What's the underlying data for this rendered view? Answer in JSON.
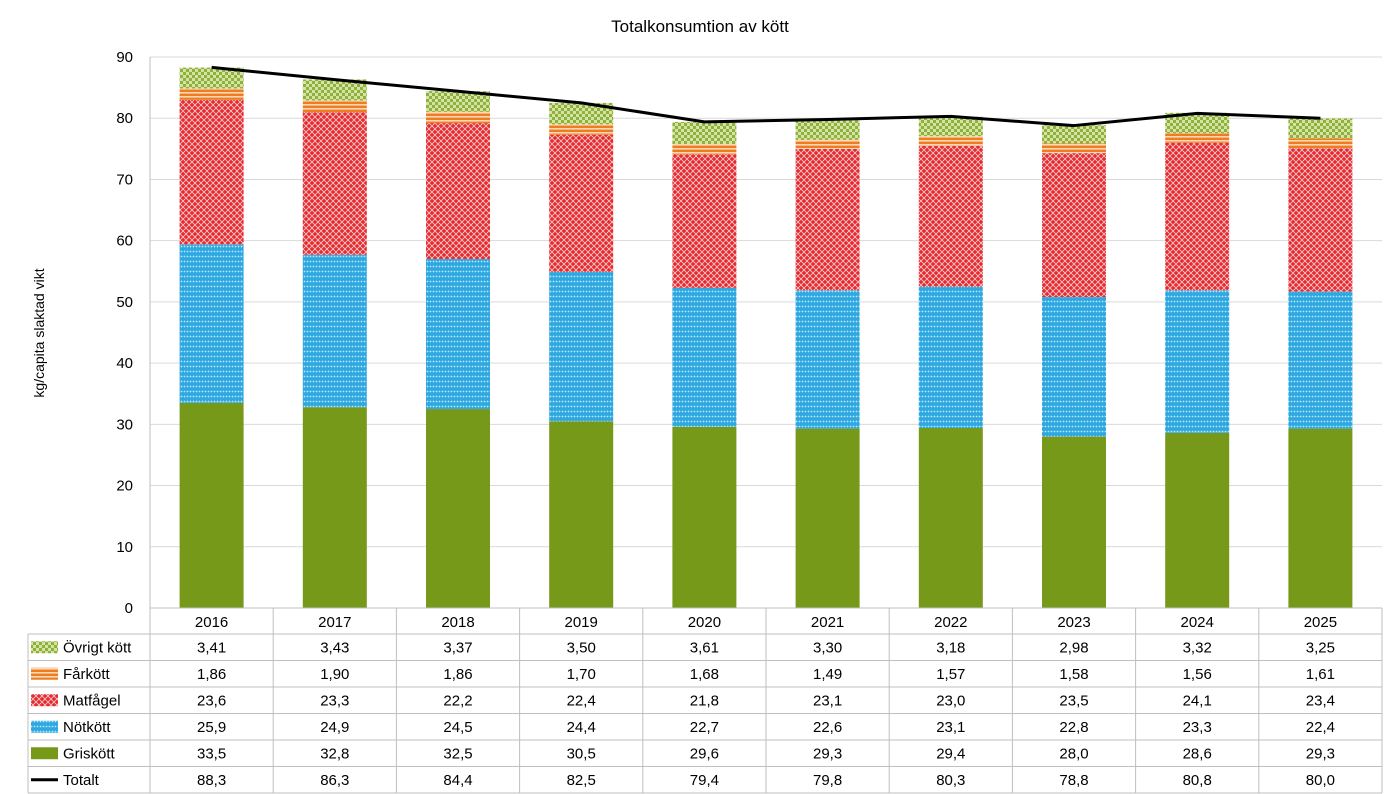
{
  "chart_data": {
    "type": "bar",
    "stacked": true,
    "title": "Totalkonsumtion av kött",
    "ylabel": "kg/capita slaktad vikt",
    "xlabel": "",
    "ylim": [
      0,
      90
    ],
    "yticks": [
      0,
      10,
      20,
      30,
      40,
      50,
      60,
      70,
      80,
      90
    ],
    "grid": true,
    "legend_placement": "data-table-left",
    "categories": [
      "2016",
      "2017",
      "2018",
      "2019",
      "2020",
      "2021",
      "2022",
      "2023",
      "2024",
      "2025"
    ],
    "series": [
      {
        "name": "Griskött",
        "color": "#77991a",
        "pattern": "solid",
        "values": [
          33.5,
          32.8,
          32.5,
          30.5,
          29.6,
          29.3,
          29.4,
          28.0,
          28.6,
          29.3
        ],
        "labels": [
          "33,5",
          "32,8",
          "32,5",
          "30,5",
          "29,6",
          "29,3",
          "29,4",
          "28,0",
          "28,6",
          "29,3"
        ]
      },
      {
        "name": "Nötkött",
        "color": "#2ea8e0",
        "pattern": "horizontal-dots",
        "values": [
          25.9,
          24.9,
          24.5,
          24.4,
          22.7,
          22.6,
          23.1,
          22.8,
          23.3,
          22.4
        ],
        "labels": [
          "25,9",
          "24,9",
          "24,5",
          "24,4",
          "22,7",
          "22,6",
          "23,1",
          "22,8",
          "23,3",
          "22,4"
        ]
      },
      {
        "name": "Matfågel",
        "color": "#e52b30",
        "pattern": "crosshatch",
        "values": [
          23.6,
          23.3,
          22.2,
          22.4,
          21.8,
          23.1,
          23.0,
          23.5,
          24.1,
          23.4
        ],
        "labels": [
          "23,6",
          "23,3",
          "22,2",
          "22,4",
          "21,8",
          "23,1",
          "23,0",
          "23,5",
          "24,1",
          "23,4"
        ]
      },
      {
        "name": "Fårkött",
        "color": "#ee7d22",
        "pattern": "horizontal-stripes",
        "values": [
          1.86,
          1.9,
          1.86,
          1.7,
          1.68,
          1.49,
          1.57,
          1.58,
          1.56,
          1.61
        ],
        "labels": [
          "1,86",
          "1,90",
          "1,86",
          "1,70",
          "1,68",
          "1,49",
          "1,57",
          "1,58",
          "1,56",
          "1,61"
        ]
      },
      {
        "name": "Övrigt kött",
        "color": "#8fb13b",
        "pattern": "checker",
        "values": [
          3.41,
          3.43,
          3.37,
          3.5,
          3.61,
          3.3,
          3.18,
          2.98,
          3.32,
          3.25
        ],
        "labels": [
          "3,41",
          "3,43",
          "3,37",
          "3,50",
          "3,61",
          "3,30",
          "3,18",
          "2,98",
          "3,32",
          "3,25"
        ]
      }
    ],
    "line": {
      "name": "Totalt",
      "color": "#000000",
      "values": [
        88.3,
        86.3,
        84.4,
        82.5,
        79.4,
        79.8,
        80.3,
        78.8,
        80.8,
        80.0
      ],
      "labels": [
        "88,3",
        "86,3",
        "84,4",
        "82,5",
        "79,4",
        "79,8",
        "80,3",
        "78,8",
        "80,8",
        "80,0"
      ]
    },
    "table_row_order": [
      "Övrigt kött",
      "Fårkött",
      "Matfågel",
      "Nötkött",
      "Griskött",
      "Totalt"
    ]
  }
}
